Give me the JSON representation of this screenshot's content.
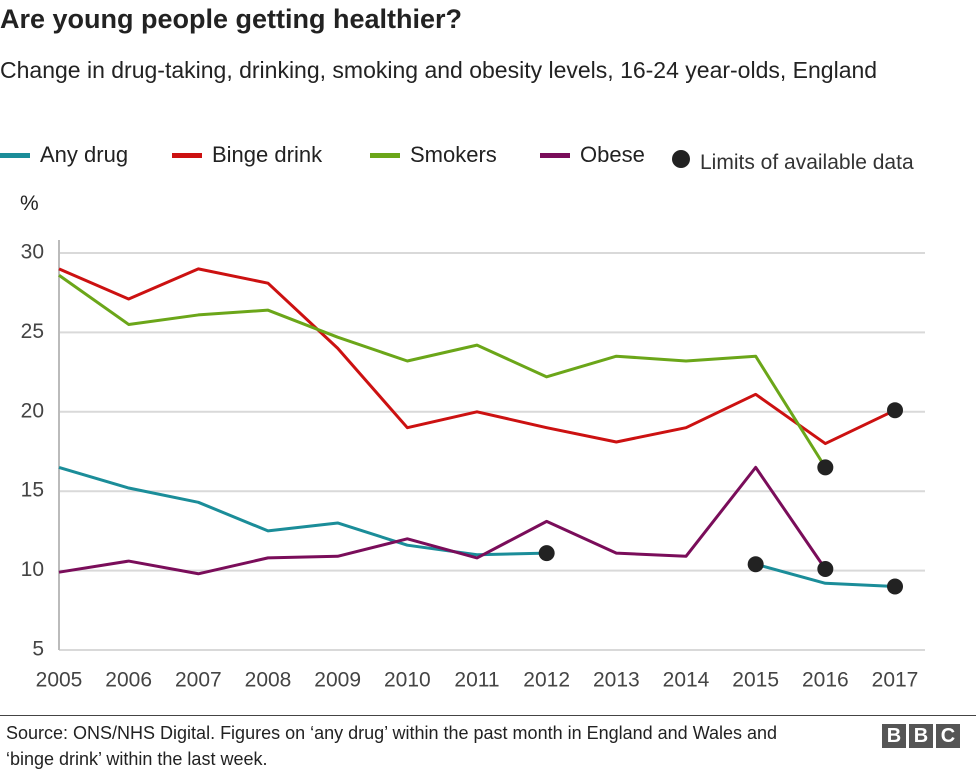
{
  "chart_data": {
    "type": "line",
    "title": "Are young people getting healthier?",
    "subtitle": "Change in drug-taking, drinking, smoking and obesity levels, 16-24 year-olds, England",
    "y_label": "%",
    "limits_label": "Limits of available data",
    "source": "Source: ONS/NHS Digital. Figures on ‘any drug’ within the past month in England and Wales and ‘binge drink’ within the last week.",
    "x": [
      2005,
      2006,
      2007,
      2008,
      2009,
      2010,
      2011,
      2012,
      2013,
      2014,
      2015,
      2016,
      2017
    ],
    "xlim": [
      2005,
      2017
    ],
    "xticks": [
      2005,
      2006,
      2007,
      2008,
      2009,
      2010,
      2011,
      2012,
      2013,
      2014,
      2015,
      2016,
      2017
    ],
    "ylim": [
      5,
      30
    ],
    "yticks": [
      5,
      10,
      15,
      20,
      25,
      30
    ],
    "grid": true,
    "series": [
      {
        "name": "Any drug",
        "color": "#1b8d99",
        "values": [
          16.5,
          15.2,
          14.3,
          12.5,
          13.0,
          11.6,
          11.0,
          11.1,
          null,
          null,
          10.4,
          9.2,
          9.0
        ]
      },
      {
        "name": "Binge drink",
        "color": "#cc1111",
        "values": [
          29.0,
          27.1,
          29.0,
          28.1,
          24.0,
          19.0,
          20.0,
          19.0,
          18.1,
          19.0,
          21.1,
          18.0,
          20.1
        ]
      },
      {
        "name": "Smokers",
        "color": "#6ba619",
        "values": [
          28.6,
          25.5,
          26.1,
          26.4,
          24.7,
          23.2,
          24.2,
          22.2,
          23.5,
          23.2,
          23.5,
          16.5,
          null
        ]
      },
      {
        "name": "Obese",
        "color": "#7a0d5a",
        "values": [
          9.9,
          10.6,
          9.8,
          10.8,
          10.9,
          12.0,
          10.8,
          13.1,
          11.1,
          10.9,
          16.5,
          10.1,
          null
        ]
      }
    ]
  }
}
